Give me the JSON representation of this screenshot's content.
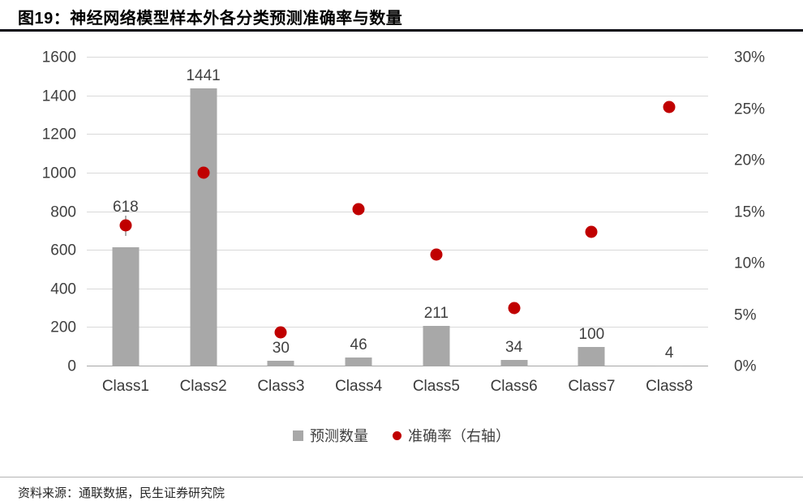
{
  "header": {
    "title": "图19：神经网络模型样本外各分类预测准确率与数量"
  },
  "footer": {
    "source": "资料来源：通联数据，民生证券研究院"
  },
  "colors": {
    "bar": "#a8a8a8",
    "accuracy_dot": "#c00000",
    "title_rule": "#05050f",
    "gridline": "#d9d9d9"
  },
  "chart_data": {
    "type": "bar+scatter",
    "title": "图19：神经网络模型样本外各分类预测准确率与数量",
    "categories": [
      "Class1",
      "Class2",
      "Class3",
      "Class4",
      "Class5",
      "Class6",
      "Class7",
      "Class8"
    ],
    "series": [
      {
        "name": "预测数量",
        "type": "bar",
        "axis": "left",
        "values": [
          618,
          1441,
          30,
          46,
          211,
          34,
          100,
          4
        ],
        "data_labels": [
          "618",
          "1441",
          "30",
          "46",
          "211",
          "34",
          "100",
          "4"
        ],
        "color": "#a8a8a8"
      },
      {
        "name": "准确率（右轴）",
        "type": "scatter",
        "axis": "right",
        "values_pct": [
          13.7,
          18.8,
          3.3,
          15.3,
          10.9,
          5.7,
          13.1,
          25.2
        ],
        "color": "#c00000"
      }
    ],
    "left_axis": {
      "min": 0,
      "max": 1600,
      "step": 200,
      "ticks": [
        "0",
        "200",
        "400",
        "600",
        "800",
        "1000",
        "1200",
        "1400",
        "1600"
      ]
    },
    "right_axis": {
      "min": 0,
      "max": 30,
      "step": 5,
      "ticks": [
        "0%",
        "5%",
        "10%",
        "15%",
        "20%",
        "25%",
        "30%"
      ]
    },
    "grid": true,
    "legend_position": "bottom",
    "legend": [
      {
        "label": "预测数量",
        "marker": "square",
        "color": "#a8a8a8"
      },
      {
        "label": "准确率（右轴）",
        "marker": "circle",
        "color": "#c00000"
      }
    ]
  }
}
